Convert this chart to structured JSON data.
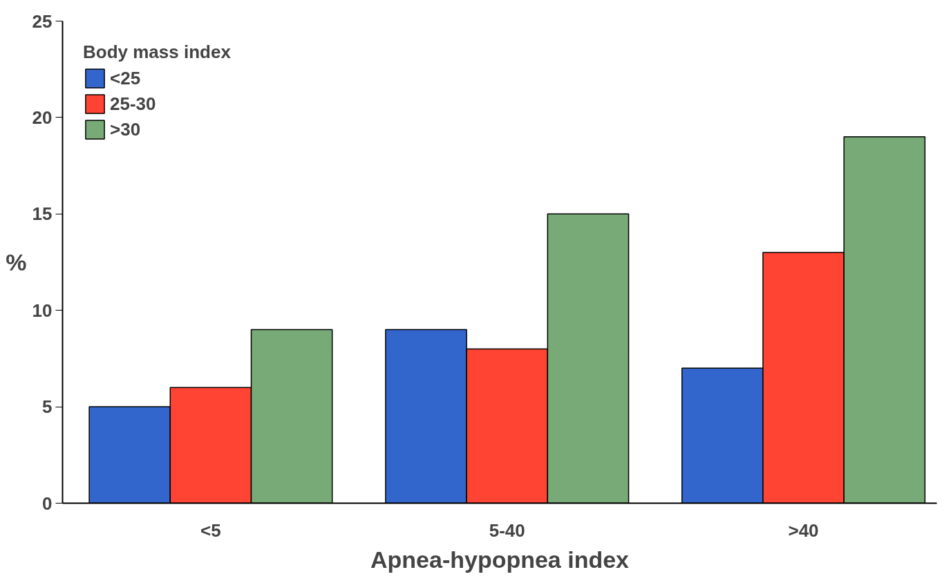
{
  "chart_data": {
    "type": "bar",
    "xlabel": "Apnea-hypopnea index",
    "ylabel": "%",
    "legend_title": "Body mass index",
    "categories": [
      "<5",
      "5-40",
      ">40"
    ],
    "series": [
      {
        "name": "<25",
        "color": "#3366cc",
        "values": [
          5,
          9,
          7
        ]
      },
      {
        "name": "25-30",
        "color": "#ff4433",
        "values": [
          6,
          8,
          13
        ]
      },
      {
        "name": ">30",
        "color": "#77aa77",
        "values": [
          9,
          15,
          19
        ]
      }
    ],
    "ylim": [
      0,
      25
    ],
    "yticks": [
      0,
      5,
      10,
      15,
      20,
      25
    ],
    "grid": false,
    "legend": "top left"
  }
}
